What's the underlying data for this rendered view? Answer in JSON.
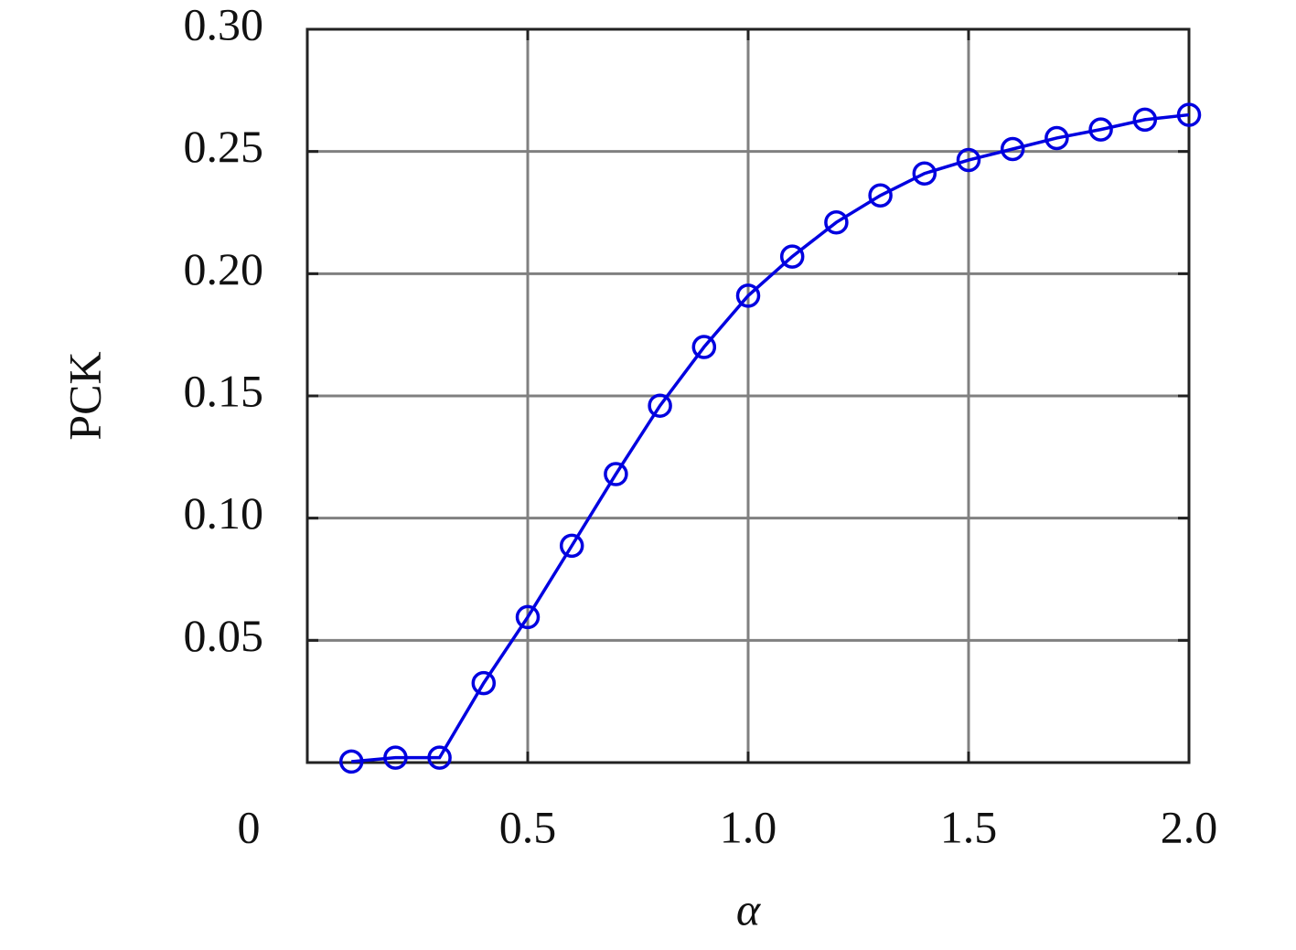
{
  "chart_data": {
    "type": "line",
    "x_label": "α",
    "y_label": "PCK",
    "xlim": [
      0,
      2
    ],
    "ylim": [
      0,
      0.3
    ],
    "xticks": [
      0,
      0.5,
      {
        "value": 1,
        "label": "1.0"
      },
      1.5,
      {
        "value": 2,
        "label": "2.0"
      }
    ],
    "yticks": [
      0.05,
      {
        "value": 0.1,
        "label": "0.10"
      },
      0.15,
      {
        "value": 0.2,
        "label": "0.20"
      },
      0.25,
      {
        "value": 0.3,
        "label": "0.30"
      }
    ],
    "grid": true,
    "x": [
      0.1,
      0.2,
      0.3,
      0.4,
      0.5,
      0.6,
      0.7,
      0.8,
      0.9,
      1.0,
      1.1,
      1.2,
      1.3,
      1.4,
      1.5,
      1.6,
      1.7,
      1.8,
      1.9,
      2.0
    ],
    "series": [
      {
        "color": "#0000e0",
        "values": [
          0.0004,
          0.002,
          0.002,
          0.0325,
          0.0595,
          0.0887,
          0.118,
          0.146,
          0.17,
          0.191,
          0.207,
          0.221,
          0.232,
          0.241,
          0.2465,
          0.251,
          0.2555,
          0.259,
          0.263,
          0.265
        ]
      }
    ]
  }
}
